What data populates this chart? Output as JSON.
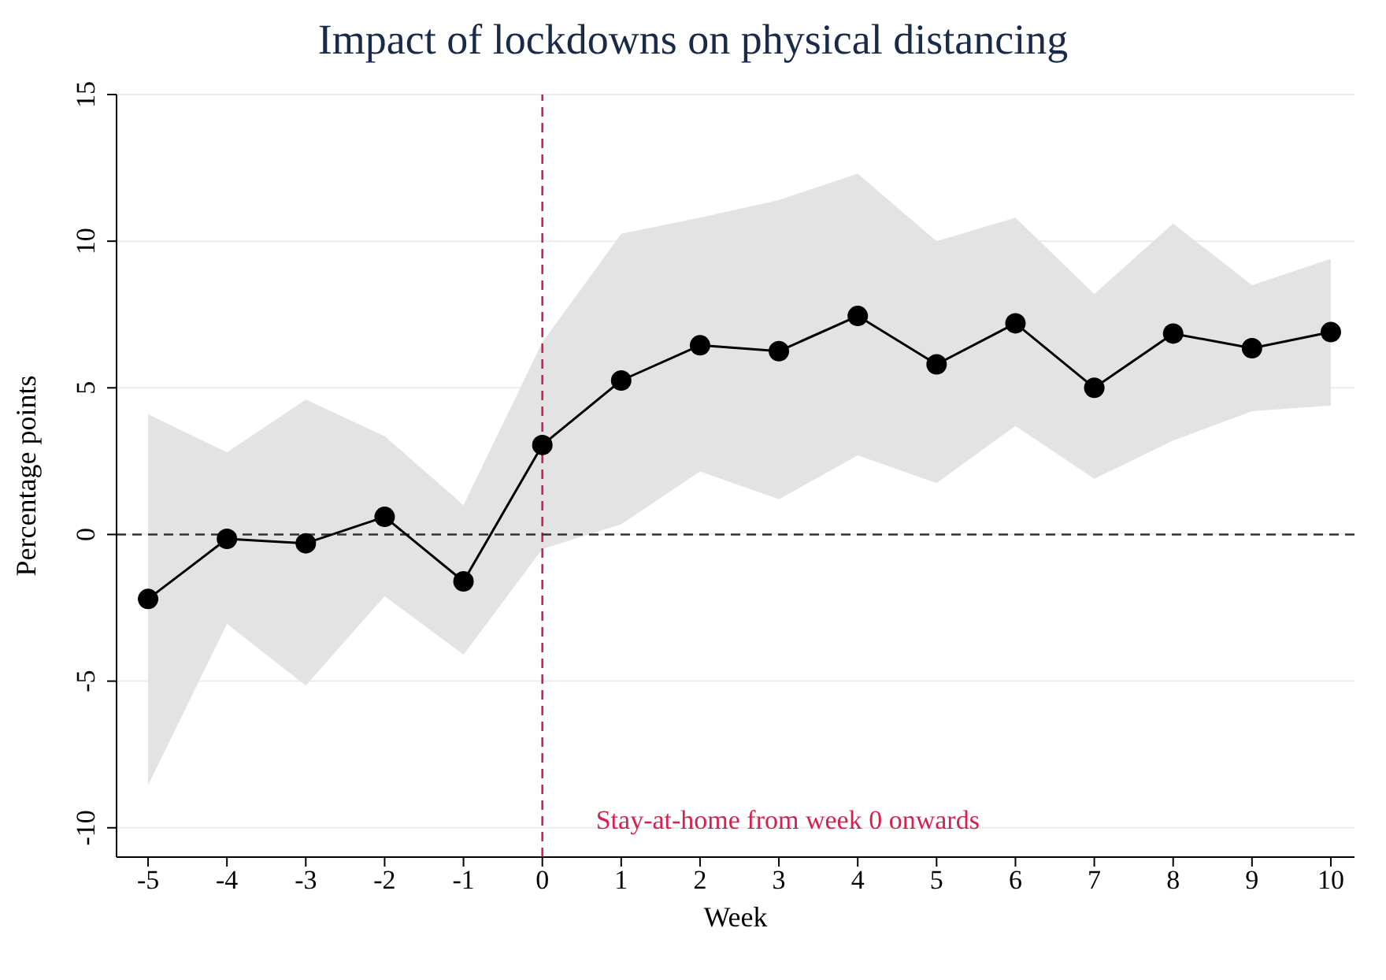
{
  "chart_data": {
    "type": "line",
    "title": "Impact of lockdowns on physical distancing",
    "xlabel": "Week",
    "ylabel": "Percentage points",
    "x": [
      -5,
      -4,
      -3,
      -2,
      -1,
      0,
      1,
      2,
      3,
      4,
      5,
      6,
      7,
      8,
      9,
      10
    ],
    "series": [
      {
        "color": "#000000",
        "values": [
          -2.2,
          -0.15,
          -0.3,
          0.6,
          -1.6,
          3.05,
          5.25,
          6.45,
          6.25,
          7.45,
          5.8,
          7.2,
          5.0,
          6.85,
          6.35,
          6.9
        ],
        "lower": [
          -8.55,
          -3.05,
          -5.15,
          -2.1,
          -4.1,
          -0.5,
          0.35,
          2.15,
          1.2,
          2.7,
          1.75,
          3.7,
          1.9,
          3.2,
          4.2,
          4.4
        ],
        "upper": [
          4.1,
          2.8,
          4.6,
          3.35,
          1.0,
          6.55,
          10.25,
          10.8,
          11.4,
          12.3,
          10.0,
          10.8,
          8.2,
          10.6,
          8.5,
          9.4
        ]
      }
    ],
    "xlim": [
      -5.4,
      10.3
    ],
    "xticks": [
      -5,
      -4,
      -3,
      -2,
      -1,
      0,
      1,
      2,
      3,
      4,
      5,
      6,
      7,
      8,
      9,
      10
    ],
    "ylim": [
      -11,
      15
    ],
    "yticks": [
      -10,
      -5,
      0,
      5,
      10,
      15
    ],
    "grid": "y",
    "marker": "circle",
    "line_style": "solid",
    "ref_lines": [
      {
        "axis": "x",
        "value": 0,
        "label": "Stay-at-home from week 0 onwards",
        "color": "#d6204e",
        "line_style": "dashed"
      },
      {
        "axis": "y",
        "value": 0,
        "color": "#333333",
        "line_style": "dashed"
      }
    ]
  }
}
